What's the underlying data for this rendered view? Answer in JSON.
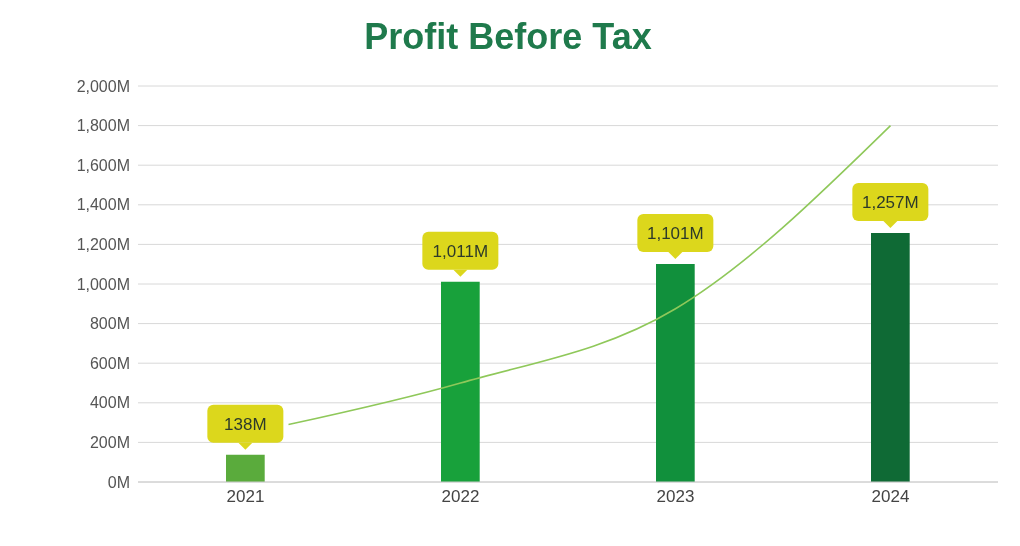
{
  "chart_data": {
    "type": "bar",
    "title": "Profit Before Tax",
    "x": [
      2021,
      2022,
      2023,
      2024
    ],
    "series": [
      {
        "colors": [
          "#5aab3c",
          "#18a13b",
          "#11903c",
          "#0f6a35"
        ],
        "values": [
          138,
          1011,
          1101,
          1257
        ],
        "value_labels": [
          "138M",
          "1,011M",
          "1,101M",
          "1,257M"
        ]
      },
      {
        "type": "line",
        "color": "#8fc85a",
        "x": [
          2021.2,
          2022,
          2023,
          2024
        ],
        "values": [
          290,
          500,
          875,
          1800
        ]
      }
    ],
    "xlim": [
      2020.5,
      2024.5
    ],
    "xticks": [
      2021,
      2022,
      2023,
      2024
    ],
    "ylim": [
      0,
      2000
    ],
    "yticks": [
      {
        "value": 0,
        "label": "0M"
      },
      {
        "value": 200,
        "label": "200M"
      },
      {
        "value": 400,
        "label": "400M"
      },
      {
        "value": 600,
        "label": "600M"
      },
      {
        "value": 800,
        "label": "800M"
      },
      {
        "value": 1000,
        "label": "1,000M"
      },
      {
        "value": 1200,
        "label": "1,200M"
      },
      {
        "value": 1400,
        "label": "1,400M"
      },
      {
        "value": 1600,
        "label": "1,600M"
      },
      {
        "value": 1800,
        "label": "1,800M"
      },
      {
        "value": 2000,
        "label": "2,000M"
      }
    ],
    "grid": "y"
  }
}
